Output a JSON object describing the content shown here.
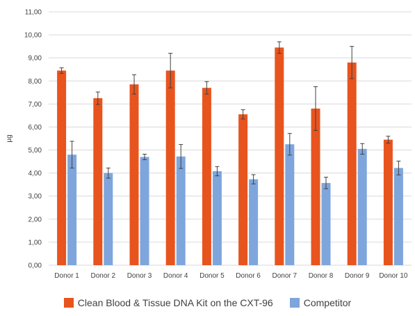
{
  "chart_data": {
    "type": "bar",
    "title": "",
    "xlabel": "",
    "ylabel": "µg",
    "ylim": [
      0,
      11
    ],
    "ytick_step": 1,
    "ytick_labels": [
      "0,00",
      "1,00",
      "2,00",
      "3,00",
      "4,00",
      "5,00",
      "6,00",
      "7,00",
      "8,00",
      "9,00",
      "10,00",
      "11,00"
    ],
    "grid": true,
    "legend_position": "bottom",
    "categories": [
      "Donor 1",
      "Donor 2",
      "Donor 3",
      "Donor 4",
      "Donor 5",
      "Donor 6",
      "Donor 7",
      "Donor 8",
      "Donor 9",
      "Donor 10"
    ],
    "series": [
      {
        "name": "Clean Blood & Tissue DNA Kit on the CXT-96",
        "color": "#e8541e",
        "values": [
          8.45,
          7.25,
          7.85,
          8.45,
          7.7,
          6.55,
          9.45,
          6.8,
          8.8,
          5.45
        ],
        "errors": [
          0.12,
          0.27,
          0.42,
          0.75,
          0.27,
          0.2,
          0.25,
          0.95,
          0.7,
          0.15
        ]
      },
      {
        "name": "Competitor",
        "color": "#7ea6dc",
        "values": [
          4.8,
          4.0,
          4.7,
          4.72,
          4.08,
          3.73,
          5.25,
          3.57,
          5.05,
          4.22
        ],
        "errors": [
          0.58,
          0.22,
          0.12,
          0.52,
          0.2,
          0.2,
          0.47,
          0.25,
          0.23,
          0.3
        ]
      }
    ]
  }
}
